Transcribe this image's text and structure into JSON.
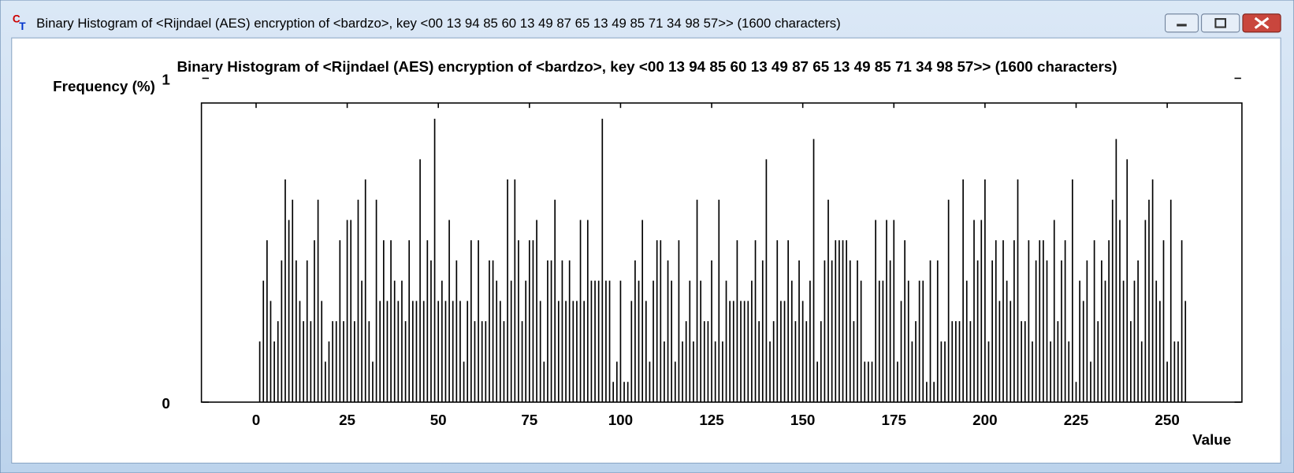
{
  "window_title": "Binary Histogram of <Rijndael (AES) encryption of <bardzo>, key <00 13 94 85 60 13 49 87 65 13 49 85 71 34 98 57>> (1600 characters)",
  "chart_data": {
    "type": "histogram",
    "title": "Binary Histogram of <Rijndael (AES) encryption of <bardzo>, key <00 13 94 85 60 13 49 87 65 13 49 85 71 34 98 57>> (1600 characters)",
    "y_label": "Frequency (%)",
    "x_label": "Value",
    "color": "#000000",
    "xlim": [
      -15,
      270.5
    ],
    "xticks": [
      0,
      25,
      50,
      75,
      100,
      125,
      150,
      175,
      200,
      225,
      250
    ],
    "ylim": [
      0,
      1
    ],
    "yticks": [
      0,
      1
    ],
    "x": [
      0,
      1,
      2,
      3,
      4,
      5,
      6,
      7,
      8,
      9,
      10,
      11,
      12,
      13,
      14,
      15,
      16,
      17,
      18,
      19,
      20,
      21,
      22,
      23,
      24,
      25,
      26,
      27,
      28,
      29,
      30,
      31,
      32,
      33,
      34,
      35,
      36,
      37,
      38,
      39,
      40,
      41,
      42,
      43,
      44,
      45,
      46,
      47,
      48,
      49,
      50,
      51,
      52,
      53,
      54,
      55,
      56,
      57,
      58,
      59,
      60,
      61,
      62,
      63,
      64,
      65,
      66,
      67,
      68,
      69,
      70,
      71,
      72,
      73,
      74,
      75,
      76,
      77,
      78,
      79,
      80,
      81,
      82,
      83,
      84,
      85,
      86,
      87,
      88,
      89,
      90,
      91,
      92,
      93,
      94,
      95,
      96,
      97,
      98,
      99,
      100,
      101,
      102,
      103,
      104,
      105,
      106,
      107,
      108,
      109,
      110,
      111,
      112,
      113,
      114,
      115,
      116,
      117,
      118,
      119,
      120,
      121,
      122,
      123,
      124,
      125,
      126,
      127,
      128,
      129,
      130,
      131,
      132,
      133,
      134,
      135,
      136,
      137,
      138,
      139,
      140,
      141,
      142,
      143,
      144,
      145,
      146,
      147,
      148,
      149,
      150,
      151,
      152,
      153,
      154,
      155,
      156,
      157,
      158,
      159,
      160,
      161,
      162,
      163,
      164,
      165,
      166,
      167,
      168,
      169,
      170,
      171,
      172,
      173,
      174,
      175,
      176,
      177,
      178,
      179,
      180,
      181,
      182,
      183,
      184,
      185,
      186,
      187,
      188,
      189,
      190,
      191,
      192,
      193,
      194,
      195,
      196,
      197,
      198,
      199,
      200,
      201,
      202,
      203,
      204,
      205,
      206,
      207,
      208,
      209,
      210,
      211,
      212,
      213,
      214,
      215,
      216,
      217,
      218,
      219,
      220,
      221,
      222,
      223,
      224,
      225,
      226,
      227,
      228,
      229,
      230,
      231,
      232,
      233,
      234,
      235,
      236,
      237,
      238,
      239,
      240,
      241,
      242,
      243,
      244,
      245,
      246,
      247,
      248,
      249,
      250,
      251,
      252,
      253,
      254,
      255
    ],
    "values": [
      0,
      0.1875,
      0.375,
      0.5,
      0.3125,
      0.1875,
      0.25,
      0.4375,
      0.6875,
      0.5625,
      0.625,
      0.4375,
      0.3125,
      0.25,
      0.4375,
      0.25,
      0.5,
      0.625,
      0.3125,
      0.125,
      0.1875,
      0.25,
      0.25,
      0.5,
      0.25,
      0.5625,
      0.5625,
      0.25,
      0.625,
      0.375,
      0.6875,
      0.25,
      0.125,
      0.625,
      0.3125,
      0.5,
      0.3125,
      0.5,
      0.375,
      0.3125,
      0.375,
      0.25,
      0.5,
      0.3125,
      0.3125,
      0.75,
      0.3125,
      0.5,
      0.4375,
      0.875,
      0.3125,
      0.375,
      0.3125,
      0.5625,
      0.3125,
      0.4375,
      0.3125,
      0.125,
      0.3125,
      0.5,
      0.25,
      0.5,
      0.25,
      0.25,
      0.4375,
      0.4375,
      0.375,
      0.3125,
      0.25,
      0.6875,
      0.375,
      0.6875,
      0.5,
      0.25,
      0.375,
      0.5,
      0.5,
      0.5625,
      0.3125,
      0.125,
      0.4375,
      0.4375,
      0.625,
      0.3125,
      0.4375,
      0.3125,
      0.4375,
      0.3125,
      0.3125,
      0.5625,
      0.3125,
      0.5625,
      0.375,
      0.375,
      0.375,
      0.875,
      0.375,
      0.375,
      0.0625,
      0.125,
      0.375,
      0.0625,
      0.0625,
      0.3125,
      0.4375,
      0.375,
      0.5625,
      0.3125,
      0.125,
      0.375,
      0.5,
      0.5,
      0.1875,
      0.4375,
      0.375,
      0.125,
      0.5,
      0.1875,
      0.25,
      0.375,
      0.1875,
      0.625,
      0.375,
      0.25,
      0.25,
      0.4375,
      0.1875,
      0.625,
      0.1875,
      0.375,
      0.3125,
      0.3125,
      0.5,
      0.3125,
      0.3125,
      0.3125,
      0.375,
      0.5,
      0.25,
      0.4375,
      0.75,
      0.1875,
      0.25,
      0.5,
      0.3125,
      0.3125,
      0.5,
      0.375,
      0.25,
      0.4375,
      0.3125,
      0.25,
      0.375,
      0.8125,
      0.125,
      0.25,
      0.4375,
      0.625,
      0.4375,
      0.5,
      0.5,
      0.5,
      0.5,
      0.4375,
      0.25,
      0.4375,
      0.375,
      0.125,
      0.125,
      0.125,
      0.5625,
      0.375,
      0.375,
      0.5625,
      0.4375,
      0.5625,
      0.125,
      0.3125,
      0.5,
      0.375,
      0.1875,
      0.25,
      0.375,
      0.375,
      0.0625,
      0.4375,
      0.0625,
      0.4375,
      0.1875,
      0.1875,
      0.625,
      0.25,
      0.25,
      0.25,
      0.6875,
      0.375,
      0.25,
      0.5625,
      0.4375,
      0.5625,
      0.6875,
      0.1875,
      0.4375,
      0.5,
      0.3125,
      0.5,
      0.375,
      0.3125,
      0.5,
      0.6875,
      0.25,
      0.25,
      0.5,
      0.1875,
      0.4375,
      0.5,
      0.5,
      0.4375,
      0.1875,
      0.5625,
      0.25,
      0.4375,
      0.5,
      0.1875,
      0.6875,
      0.0625,
      0.375,
      0.3125,
      0.4375,
      0.125,
      0.5,
      0.25,
      0.4375,
      0.375,
      0.5,
      0.625,
      0.8125,
      0.5625,
      0.375,
      0.75,
      0.25,
      0.375,
      0.4375,
      0.1875,
      0.5625,
      0.625,
      0.6875,
      0.375,
      0.3125,
      0.5,
      0.125,
      0.625,
      0.1875,
      0.1875,
      0.5,
      0.3125
    ]
  }
}
